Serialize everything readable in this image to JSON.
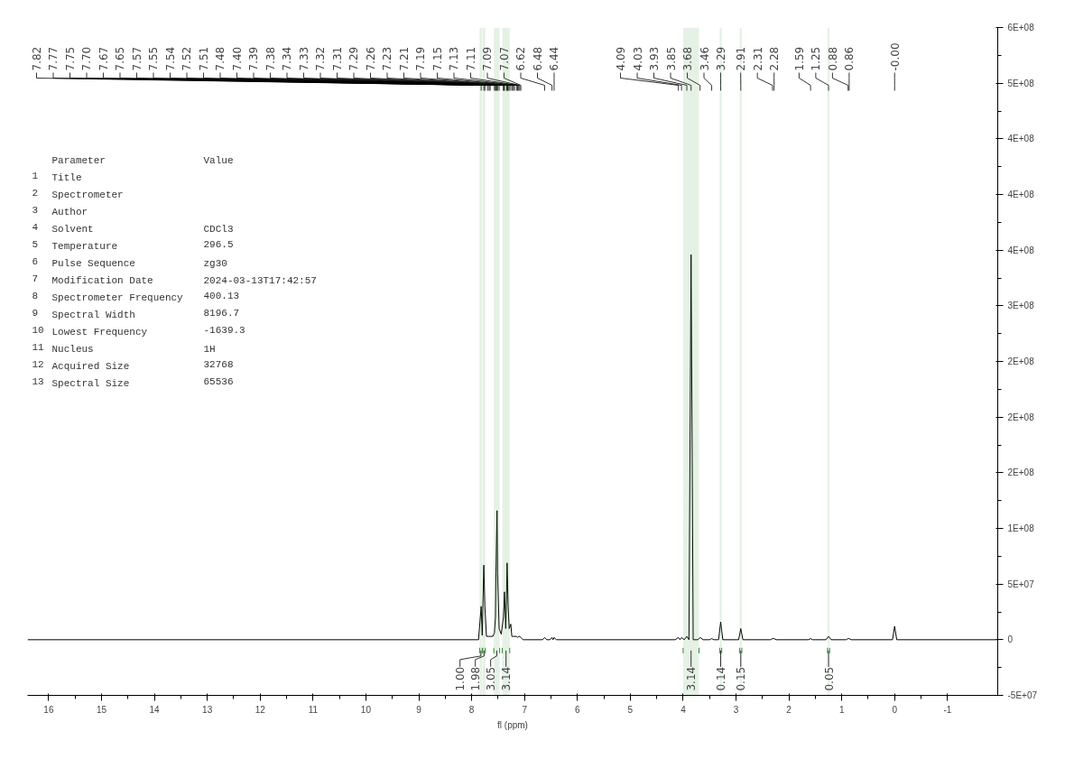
{
  "chart_data": {
    "type": "line",
    "xlabel": "fl (ppm)",
    "x": [
      16.4,
      8.2,
      7.87,
      7.82,
      7.8,
      7.77,
      7.75,
      7.72,
      7.7,
      7.67,
      7.65,
      7.6,
      7.57,
      7.55,
      7.54,
      7.52,
      7.51,
      7.48,
      7.44,
      7.4,
      7.39,
      7.38,
      7.355,
      7.34,
      7.33,
      7.32,
      7.31,
      7.29,
      7.26,
      7.24,
      7.23,
      7.21,
      7.19,
      7.15,
      7.13,
      7.11,
      7.09,
      7.07,
      7.03,
      6.66,
      6.62,
      6.58,
      6.52,
      6.48,
      6.46,
      6.44,
      6.4,
      4.15,
      4.09,
      4.06,
      4.03,
      3.98,
      3.93,
      3.89,
      3.85,
      3.81,
      3.72,
      3.68,
      3.62,
      3.5,
      3.46,
      3.42,
      3.33,
      3.29,
      3.25,
      2.95,
      2.91,
      2.87,
      2.35,
      2.31,
      2.28,
      2.24,
      1.63,
      1.59,
      1.55,
      1.3,
      1.25,
      1.2,
      0.92,
      0.88,
      0.86,
      0.82,
      0.04,
      0.0,
      -0.04,
      -1.95
    ],
    "series": [
      {
        "color": "#000000",
        "values": [
          0,
          0,
          0,
          30000000.0,
          4000000.0,
          67000000.0,
          30000000.0,
          3000000.0,
          3000000.0,
          3000000.0,
          3000000.0,
          3000000.0,
          6000000.0,
          20000000.0,
          60000000.0,
          116000000.0,
          60000000.0,
          10000000.0,
          5000000.0,
          20000000.0,
          30000000.0,
          43000000.0,
          10000000.0,
          40000000.0,
          69000000.0,
          50000000.0,
          30000000.0,
          10000000.0,
          14000000.0,
          3000000.0,
          3000000.0,
          3000000.0,
          3000000.0,
          3000000.0,
          2000000.0,
          3000000.0,
          3000000.0,
          2000000.0,
          0,
          0,
          2000000.0,
          0,
          0,
          2000000.0,
          0,
          2000000.0,
          0,
          0,
          2000000.0,
          0,
          2000000.0,
          0,
          3000000.0,
          0,
          346000000.0,
          0,
          0,
          2000000.0,
          0,
          0,
          1000000.0,
          0,
          0,
          16000000.0,
          0,
          0,
          10000000.0,
          0,
          0,
          1000000.0,
          1000000.0,
          0,
          0,
          1000000.0,
          0,
          0,
          3000000.0,
          0,
          0,
          1000000.0,
          1000000.0,
          0,
          0,
          12000000.0,
          0,
          0
        ]
      }
    ],
    "xlim": [
      16.4,
      -1.95
    ],
    "xticks": [
      16,
      15,
      14,
      13,
      12,
      11,
      10,
      9,
      8,
      7,
      6,
      5,
      4,
      3,
      2,
      1,
      0,
      -1
    ],
    "ylim": [
      -50000000.0,
      550000000.0
    ],
    "yticks": [
      {
        "value": -50000000.0,
        "label": "-5E+07"
      },
      {
        "value": 0,
        "label": "0"
      },
      {
        "value": 50000000.0,
        "label": "5E+07"
      },
      {
        "value": 100000000.0,
        "label": "1E+08"
      },
      {
        "value": 150000000.0,
        "label": "2E+08"
      },
      {
        "value": 200000000.0,
        "label": "2E+08"
      },
      {
        "value": 250000000.0,
        "label": "2E+08"
      },
      {
        "value": 300000000.0,
        "label": "3E+08"
      },
      {
        "value": 350000000.0,
        "label": "4E+08"
      },
      {
        "value": 400000000.0,
        "label": "4E+08"
      },
      {
        "value": 450000000.0,
        "label": "4E+08"
      },
      {
        "value": 500000000.0,
        "label": "5E+08"
      },
      {
        "value": 550000000.0,
        "label": "6E+08"
      }
    ],
    "grid": false,
    "bands": [
      {
        "axis": "x",
        "from": 7.85,
        "to": 7.8,
        "label": "1.00",
        "color": "#2e8b2e"
      },
      {
        "axis": "x",
        "from": 7.79,
        "to": 7.74,
        "label": "1.98",
        "color": "#2e8b2e"
      },
      {
        "axis": "x",
        "from": 7.58,
        "to": 7.47,
        "label": "3.05",
        "color": "#2e8b2e"
      },
      {
        "axis": "x",
        "from": 7.42,
        "to": 7.28,
        "label": "3.14",
        "color": "#2e8b2e"
      },
      {
        "axis": "x",
        "from": 4.0,
        "to": 3.7,
        "label": "3.14",
        "color": "#2e8b2e"
      },
      {
        "axis": "x",
        "from": 3.31,
        "to": 3.27,
        "label": "0.14",
        "color": "#2e8b2e"
      },
      {
        "axis": "x",
        "from": 2.93,
        "to": 2.89,
        "label": "0.15",
        "color": "#2e8b2e"
      },
      {
        "axis": "x",
        "from": 1.27,
        "to": 1.23,
        "label": "0.05",
        "color": "#2e8b2e"
      }
    ],
    "annotations": [
      "   Parameter               Value",
      "1  Title",
      "2  Spectrometer",
      "3  Author",
      "4  Solvent                 CDCl3",
      "5  Temperature             296.5",
      "6  Pulse Sequence          zg30",
      "7  Modification Date       2024-03-13T17:42:57",
      "8  Spectrometer Frequency  400.13",
      "9  Spectral Width          8196.7",
      "10 Lowest Frequency        -1639.3",
      "11 Nucleus                 1H",
      "12 Acquired Size           32768",
      "13 Spectral Size           65536",
      {
        "text": "7.82",
        "x": 7.82
      },
      {
        "text": "7.77",
        "x": 7.77
      },
      {
        "text": "7.75",
        "x": 7.75
      },
      {
        "text": "7.70",
        "x": 7.7
      },
      {
        "text": "7.67",
        "x": 7.67
      },
      {
        "text": "7.65",
        "x": 7.65
      },
      {
        "text": "7.57",
        "x": 7.57
      },
      {
        "text": "7.55",
        "x": 7.55
      },
      {
        "text": "7.54",
        "x": 7.54
      },
      {
        "text": "7.52",
        "x": 7.52
      },
      {
        "text": "7.51",
        "x": 7.51
      },
      {
        "text": "7.48",
        "x": 7.48
      },
      {
        "text": "7.40",
        "x": 7.4
      },
      {
        "text": "7.39",
        "x": 7.39
      },
      {
        "text": "7.38",
        "x": 7.38
      },
      {
        "text": "7.34",
        "x": 7.34
      },
      {
        "text": "7.33",
        "x": 7.33
      },
      {
        "text": "7.32",
        "x": 7.32
      },
      {
        "text": "7.31",
        "x": 7.31
      },
      {
        "text": "7.29",
        "x": 7.29
      },
      {
        "text": "7.26",
        "x": 7.26
      },
      {
        "text": "7.23",
        "x": 7.23
      },
      {
        "text": "7.21",
        "x": 7.21
      },
      {
        "text": "7.19",
        "x": 7.19
      },
      {
        "text": "7.15",
        "x": 7.15
      },
      {
        "text": "7.13",
        "x": 7.13
      },
      {
        "text": "7.11",
        "x": 7.11
      },
      {
        "text": "7.09",
        "x": 7.09
      },
      {
        "text": "7.07",
        "x": 7.07
      },
      {
        "text": "6.62",
        "x": 6.62
      },
      {
        "text": "6.48",
        "x": 6.48
      },
      {
        "text": "6.44",
        "x": 6.44
      },
      {
        "text": "4.09",
        "x": 4.09
      },
      {
        "text": "4.03",
        "x": 4.03
      },
      {
        "text": "3.93",
        "x": 3.93
      },
      {
        "text": "3.85",
        "x": 3.85
      },
      {
        "text": "3.68",
        "x": 3.68
      },
      {
        "text": "3.46",
        "x": 3.46
      },
      {
        "text": "3.29",
        "x": 3.29
      },
      {
        "text": "2.91",
        "x": 2.91
      },
      {
        "text": "2.31",
        "x": 2.31
      },
      {
        "text": "2.28",
        "x": 2.28
      },
      {
        "text": "1.59",
        "x": 1.59
      },
      {
        "text": "1.25",
        "x": 1.25
      },
      {
        "text": "0.88",
        "x": 0.88
      },
      {
        "text": "0.86",
        "x": 0.86
      },
      {
        "text": "-0.00",
        "x": 0.0
      }
    ]
  }
}
